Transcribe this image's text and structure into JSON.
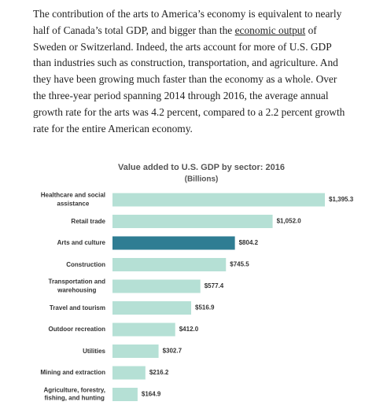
{
  "paragraph": [
    "The contribution of the arts to America’s economy is equivalent to nearly half of Canada’s total GDP, and bigger than the ",
    "economic output",
    " of Sweden or Switzerland. Indeed, the arts account for more of U.S. GDP than industries such as construction, transportation, and agriculture. And they have been growing much faster than the economy as a whole. Over the three-year period spanning 2014 through 2016, the average annual growth rate for the arts was 4.2 percent, compared to a 2.2 percent growth rate for the entire American economy."
  ],
  "chart_data": {
    "type": "bar",
    "orientation": "horizontal",
    "title": "Value added to U.S. GDP by sector: 2016",
    "subtitle": "(Billions)",
    "categories": [
      "Healthcare and social\nassistance",
      "Retail trade",
      "Arts and culture",
      "Construction",
      "Transportation and\nwarehousing",
      "Travel and tourism",
      "Outdoor recreation",
      "Utilities",
      "Mining and extraction",
      "Agriculture, forestry,\nfishing, and hunting"
    ],
    "values": [
      1395.3,
      1052.0,
      804.2,
      745.5,
      577.4,
      516.9,
      412.0,
      302.7,
      216.2,
      164.9
    ],
    "value_labels": [
      "$1,395.3",
      "$1,052.0",
      "$804.2",
      "$745.5",
      "$577.4",
      "$516.9",
      "$412.0",
      "$302.7",
      "$216.2",
      "$164.9"
    ],
    "colors": [
      "#b5e0d5",
      "#b5e0d5",
      "#2f7d93",
      "#b5e0d5",
      "#b5e0d5",
      "#b5e0d5",
      "#b5e0d5",
      "#b5e0d5",
      "#b5e0d5",
      "#b5e0d5"
    ]
  }
}
